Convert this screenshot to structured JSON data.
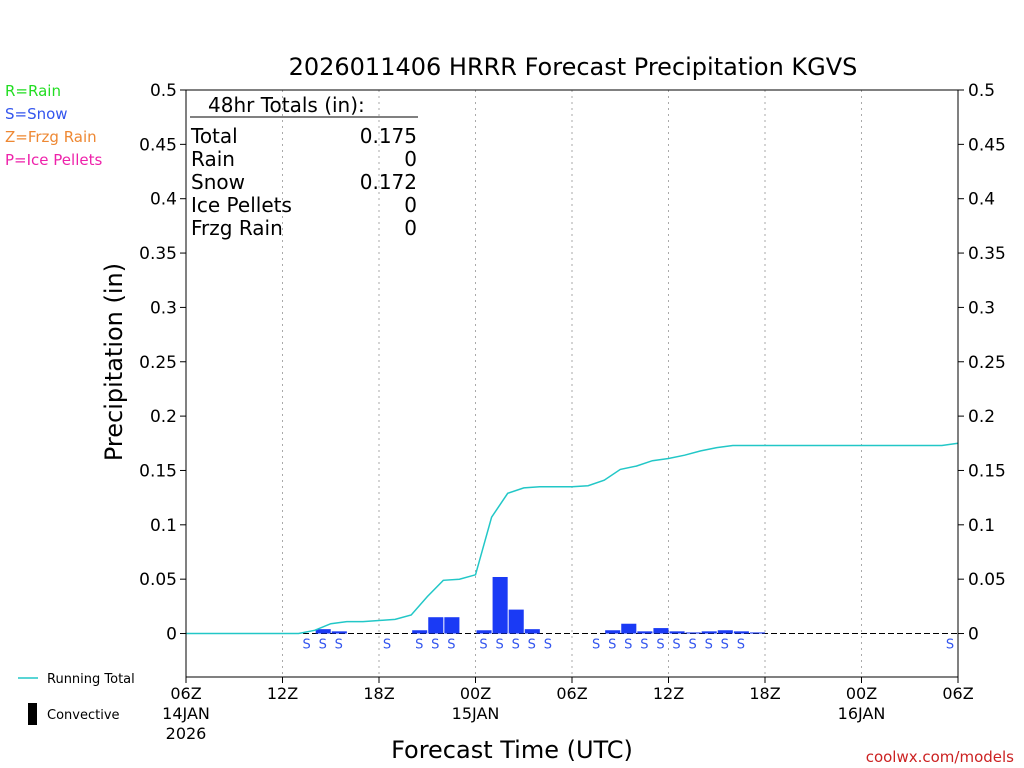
{
  "chart_data": {
    "type": "bar",
    "title": "2026011406 HRRR Forecast Precipitation KGVS",
    "ylabel": "Precipitation (in)",
    "xlabel": "Forecast Time (UTC)",
    "ylim": [
      -0.04,
      0.5
    ],
    "yticks": [
      "0",
      "0.05",
      "0.1",
      "0.15",
      "0.2",
      "0.25",
      "0.3",
      "0.35",
      "0.4",
      "0.45",
      "0.5"
    ],
    "x_range_hours": [
      0,
      48
    ],
    "xticks": [
      {
        "hour": 0,
        "label": "06Z",
        "date": "14JAN",
        "year": "2026"
      },
      {
        "hour": 6,
        "label": "12Z",
        "date": "",
        "year": ""
      },
      {
        "hour": 12,
        "label": "18Z",
        "date": "",
        "year": ""
      },
      {
        "hour": 18,
        "label": "00Z",
        "date": "15JAN",
        "year": ""
      },
      {
        "hour": 24,
        "label": "06Z",
        "date": "",
        "year": ""
      },
      {
        "hour": 30,
        "label": "12Z",
        "date": "",
        "year": ""
      },
      {
        "hour": 36,
        "label": "18Z",
        "date": "",
        "year": ""
      },
      {
        "hour": 42,
        "label": "00Z",
        "date": "16JAN",
        "year": ""
      },
      {
        "hour": 48,
        "label": "06Z",
        "date": "",
        "year": ""
      }
    ],
    "hourly_bars": [
      {
        "hour": 9,
        "value": 0.004,
        "type": "S"
      },
      {
        "hour": 10,
        "value": 0.002,
        "type": "S"
      },
      {
        "hour": 15,
        "value": 0.003,
        "type": "S"
      },
      {
        "hour": 16,
        "value": 0.015,
        "type": "S"
      },
      {
        "hour": 17,
        "value": 0.015,
        "type": "S"
      },
      {
        "hour": 19,
        "value": 0.003,
        "type": "S"
      },
      {
        "hour": 20,
        "value": 0.052,
        "type": "S"
      },
      {
        "hour": 21,
        "value": 0.022,
        "type": "S"
      },
      {
        "hour": 22,
        "value": 0.004,
        "type": "S"
      },
      {
        "hour": 27,
        "value": 0.003,
        "type": "S"
      },
      {
        "hour": 28,
        "value": 0.009,
        "type": "S"
      },
      {
        "hour": 29,
        "value": 0.002,
        "type": "S"
      },
      {
        "hour": 30,
        "value": 0.005,
        "type": "S"
      },
      {
        "hour": 31,
        "value": 0.002,
        "type": "S"
      },
      {
        "hour": 32,
        "value": 0.001,
        "type": "S"
      },
      {
        "hour": 33,
        "value": 0.002,
        "type": "S"
      },
      {
        "hour": 34,
        "value": 0.003,
        "type": "S"
      },
      {
        "hour": 35,
        "value": 0.002,
        "type": "S"
      },
      {
        "hour": 36,
        "value": 0.001,
        "type": "S"
      }
    ],
    "precip_type_marks": [
      {
        "hour": 8,
        "symbol": "S"
      },
      {
        "hour": 9,
        "symbol": "S"
      },
      {
        "hour": 10,
        "symbol": "S"
      },
      {
        "hour": 13,
        "symbol": "S"
      },
      {
        "hour": 15,
        "symbol": "S"
      },
      {
        "hour": 16,
        "symbol": "S"
      },
      {
        "hour": 17,
        "symbol": "S"
      },
      {
        "hour": 19,
        "symbol": "S"
      },
      {
        "hour": 20,
        "symbol": "S"
      },
      {
        "hour": 21,
        "symbol": "S"
      },
      {
        "hour": 22,
        "symbol": "S"
      },
      {
        "hour": 23,
        "symbol": "S"
      },
      {
        "hour": 26,
        "symbol": "S"
      },
      {
        "hour": 27,
        "symbol": "S"
      },
      {
        "hour": 28,
        "symbol": "S"
      },
      {
        "hour": 29,
        "symbol": "S"
      },
      {
        "hour": 30,
        "symbol": "S"
      },
      {
        "hour": 31,
        "symbol": "S"
      },
      {
        "hour": 32,
        "symbol": "S"
      },
      {
        "hour": 33,
        "symbol": "S"
      },
      {
        "hour": 34,
        "symbol": "S"
      },
      {
        "hour": 35,
        "symbol": "S"
      },
      {
        "hour": 48,
        "symbol": "S"
      }
    ],
    "running_total": {
      "name": "Running Total",
      "x": [
        0,
        7,
        8,
        9,
        10,
        11,
        12,
        13,
        14,
        15,
        16,
        17,
        18,
        19,
        20,
        21,
        22,
        23,
        24,
        25,
        26,
        27,
        28,
        29,
        30,
        31,
        32,
        33,
        34,
        35,
        36,
        37,
        38,
        39,
        40,
        41,
        42,
        43,
        44,
        45,
        46,
        47,
        48
      ],
      "y": [
        0,
        0,
        0.003,
        0.009,
        0.011,
        0.011,
        0.012,
        0.013,
        0.017,
        0.034,
        0.049,
        0.05,
        0.054,
        0.107,
        0.129,
        0.134,
        0.135,
        0.135,
        0.135,
        0.136,
        0.141,
        0.151,
        0.154,
        0.159,
        0.161,
        0.164,
        0.168,
        0.171,
        0.173,
        0.173,
        0.173,
        0.173,
        0.173,
        0.173,
        0.173,
        0.173,
        0.173,
        0.173,
        0.173,
        0.173,
        0.173,
        0.173,
        0.175
      ]
    },
    "totals_box": {
      "header": "48hr Totals (in):",
      "rows": [
        {
          "label": "Total",
          "value": "0.175"
        },
        {
          "label": "Rain",
          "value": "0"
        },
        {
          "label": "Snow",
          "value": "0.172"
        },
        {
          "label": "Ice Pellets",
          "value": "0"
        },
        {
          "label": "Frzg Rain",
          "value": "0"
        }
      ]
    },
    "type_legend": [
      {
        "text": "R=Rain",
        "color": "#22dd22"
      },
      {
        "text": "S=Snow",
        "color": "#3355ee"
      },
      {
        "text": "Z=Frzg Rain",
        "color": "#ee8833"
      },
      {
        "text": "P=Ice Pellets",
        "color": "#ee22aa"
      }
    ],
    "series_legend": [
      {
        "text": "Running Total",
        "kind": "line",
        "color": "#22c7c7"
      },
      {
        "text": "Convective",
        "kind": "box",
        "color": "#000000"
      }
    ],
    "colors": {
      "bar": "#1a3af5",
      "line": "#22c7c7",
      "snow": "#3355ee",
      "grid": "#aaaaaa"
    },
    "credit": "coolwx.com/models"
  }
}
